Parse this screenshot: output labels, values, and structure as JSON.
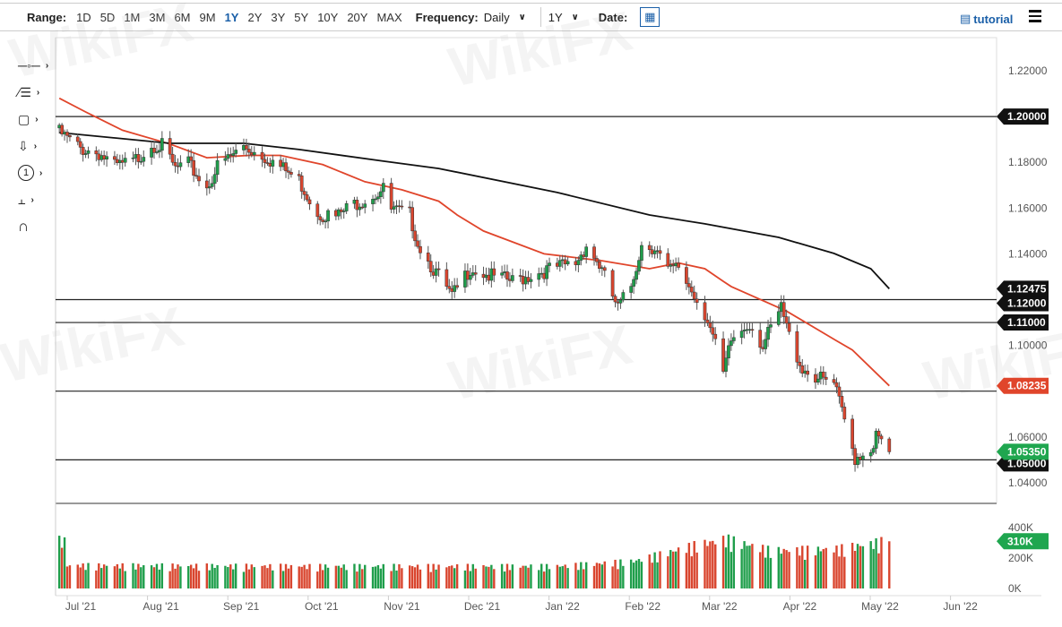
{
  "toolbar": {
    "range_label": "Range:",
    "ranges": [
      "1D",
      "5D",
      "1M",
      "3M",
      "6M",
      "9M",
      "1Y",
      "2Y",
      "3Y",
      "5Y",
      "10Y",
      "20Y",
      "MAX"
    ],
    "active_range": "1Y",
    "frequency_label": "Frequency:",
    "frequency_value": "Daily",
    "period_value": "1Y",
    "date_label": "Date:",
    "tutorial_label": "tutorial"
  },
  "drawing_tools": [
    "line-tool-icon",
    "fib-tool-icon",
    "rectangle-tool-icon",
    "arrow-tool-icon",
    "annotation-tool-icon",
    "measure-tool-icon",
    "magnet-icon"
  ],
  "annotation_glyph": "1",
  "watermark": "WikiFX",
  "colors": {
    "up": "#1f9e4b",
    "down": "#d9452e",
    "ma_fast": "#e0452b",
    "ma_slow": "#111111",
    "price_tag": "#1fa64f"
  },
  "chart_data": {
    "type": "candlestick",
    "x_axis_labels": [
      "Jul '21",
      "Aug '21",
      "Sep '21",
      "Oct '21",
      "Nov '21",
      "Dec '21",
      "Jan '22",
      "Feb '22",
      "Mar '22",
      "Apr '22",
      "May '22",
      "Jun '22"
    ],
    "y_ticks": [
      "1.22000",
      "1.18000",
      "1.16000",
      "1.14000",
      "1.10000",
      "1.06000",
      "1.04000"
    ],
    "ylim": [
      1.035,
      1.225
    ],
    "grid": false,
    "closes": [
      [
        "2021-06-28",
        1.193
      ],
      [
        "2021-07-06",
        1.186
      ],
      [
        "2021-07-13",
        1.184
      ],
      [
        "2021-07-19",
        1.178
      ],
      [
        "2021-07-26",
        1.18
      ],
      [
        "2021-08-02",
        1.188
      ],
      [
        "2021-08-06",
        1.187
      ],
      [
        "2021-08-11",
        1.177
      ],
      [
        "2021-08-16",
        1.179
      ],
      [
        "2021-08-23",
        1.169
      ],
      [
        "2021-08-27",
        1.178
      ],
      [
        "2021-09-06",
        1.187
      ],
      [
        "2021-09-15",
        1.182
      ],
      [
        "2021-09-27",
        1.172
      ],
      [
        "2021-10-04",
        1.158
      ],
      [
        "2021-10-11",
        1.156
      ],
      [
        "2021-10-18",
        1.162
      ],
      [
        "2021-10-22",
        1.164
      ],
      [
        "2021-10-29",
        1.168
      ],
      [
        "2021-11-01",
        1.159
      ],
      [
        "2021-11-08",
        1.157
      ],
      [
        "2021-11-11",
        1.145
      ],
      [
        "2021-11-15",
        1.137
      ],
      [
        "2021-11-19",
        1.13
      ],
      [
        "2021-11-24",
        1.121
      ],
      [
        "2021-12-01",
        1.134
      ],
      [
        "2021-12-09",
        1.13
      ],
      [
        "2021-12-17",
        1.128
      ],
      [
        "2021-12-27",
        1.132
      ],
      [
        "2022-01-03",
        1.134
      ],
      [
        "2022-01-10",
        1.136
      ],
      [
        "2022-01-14",
        1.144
      ],
      [
        "2022-01-19",
        1.135
      ],
      [
        "2022-01-26",
        1.116
      ],
      [
        "2022-01-31",
        1.126
      ],
      [
        "2022-02-04",
        1.144
      ],
      [
        "2022-02-09",
        1.143
      ],
      [
        "2022-02-14",
        1.132
      ],
      [
        "2022-02-18",
        1.134
      ],
      [
        "2022-02-24",
        1.122
      ],
      [
        "2022-03-01",
        1.112
      ],
      [
        "2022-03-07",
        1.087
      ],
      [
        "2022-03-10",
        1.102
      ],
      [
        "2022-03-17",
        1.11
      ],
      [
        "2022-03-22",
        1.1
      ],
      [
        "2022-03-29",
        1.116
      ],
      [
        "2022-04-01",
        1.104
      ],
      [
        "2022-04-06",
        1.09
      ],
      [
        "2022-04-13",
        1.085
      ],
      [
        "2022-04-18",
        1.083
      ],
      [
        "2022-04-22",
        1.067
      ],
      [
        "2022-04-26",
        1.051
      ],
      [
        "2022-05-02",
        1.055
      ],
      [
        "2022-05-04",
        1.06
      ],
      [
        "2022-05-09",
        1.0535
      ]
    ],
    "ma_fast": [
      [
        "2021-06-28",
        1.208
      ],
      [
        "2021-07-08",
        1.202
      ],
      [
        "2021-07-22",
        1.194
      ],
      [
        "2021-08-09",
        1.188
      ],
      [
        "2021-08-23",
        1.182
      ],
      [
        "2021-09-08",
        1.183
      ],
      [
        "2021-09-20",
        1.183
      ],
      [
        "2021-10-06",
        1.179
      ],
      [
        "2021-10-22",
        1.1715
      ],
      [
        "2021-11-05",
        1.168
      ],
      [
        "2021-11-19",
        1.163
      ],
      [
        "2021-11-26",
        1.157
      ],
      [
        "2021-12-06",
        1.15
      ],
      [
        "2021-12-29",
        1.14
      ],
      [
        "2022-01-20",
        1.137
      ],
      [
        "2022-02-07",
        1.1335
      ],
      [
        "2022-02-18",
        1.136
      ],
      [
        "2022-02-28",
        1.1335
      ],
      [
        "2022-03-07",
        1.128
      ],
      [
        "2022-03-10",
        1.1257
      ],
      [
        "2022-03-31",
        1.115
      ],
      [
        "2022-04-19",
        1.102
      ],
      [
        "2022-04-25",
        1.098
      ],
      [
        "2022-05-09",
        1.08235
      ]
    ],
    "ma_slow": [
      [
        "2021-06-28",
        1.193
      ],
      [
        "2021-08-09",
        1.1883
      ],
      [
        "2021-09-06",
        1.1883
      ],
      [
        "2021-09-27",
        1.1856
      ],
      [
        "2021-10-29",
        1.1805
      ],
      [
        "2021-11-19",
        1.1773
      ],
      [
        "2022-01-03",
        1.1668
      ],
      [
        "2022-02-07",
        1.157
      ],
      [
        "2022-02-28",
        1.1531
      ],
      [
        "2022-03-28",
        1.1472
      ],
      [
        "2022-04-18",
        1.1402
      ],
      [
        "2022-05-02",
        1.1335
      ],
      [
        "2022-05-09",
        1.12475
      ]
    ],
    "horizontal_levels": [
      {
        "value": 1.2,
        "label": "1.20000"
      },
      {
        "value": 1.12,
        "label": "1.12000"
      },
      {
        "value": 1.11,
        "label": "1.11000"
      },
      {
        "value": 1.08,
        "label": "1.08000"
      },
      {
        "value": 1.05,
        "label": "1.05000"
      }
    ],
    "tags": [
      {
        "value": 1.12475,
        "label": "1.12475",
        "color": "#111111"
      },
      {
        "value": 1.11,
        "label": "1.11000",
        "color": "#111111"
      },
      {
        "value": 1.08235,
        "label": "1.08235",
        "color": "#e0452b"
      },
      {
        "value": 1.0535,
        "label": "1.05350",
        "color": "#1fa64f"
      }
    ],
    "volume": {
      "y_ticks": [
        "400K",
        "200K",
        "0K"
      ],
      "ylim": [
        0,
        470
      ],
      "unit": "K",
      "levels": [
        [
          "2021-07-01",
          140
        ],
        [
          "2021-10-01",
          135
        ],
        [
          "2022-01-03",
          135
        ],
        [
          "2022-02-01",
          165
        ],
        [
          "2022-02-24",
          260
        ],
        [
          "2022-03-08",
          300
        ],
        [
          "2022-03-25",
          230
        ],
        [
          "2022-04-20",
          240
        ],
        [
          "2022-05-09",
          290
        ]
      ],
      "last": 310,
      "last_label": "310K"
    }
  }
}
